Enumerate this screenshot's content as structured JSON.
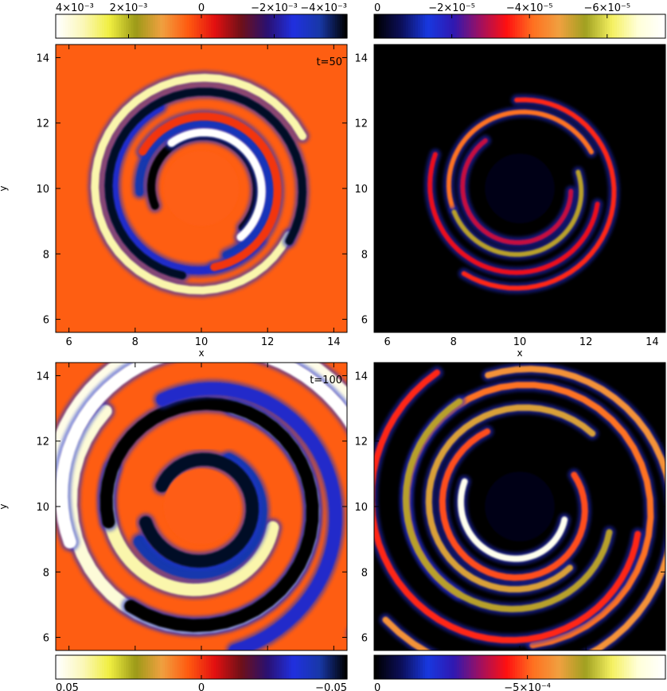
{
  "colormaps": {
    "diverging": [
      "#ffffff",
      "#fbf7b8",
      "#f0ef40",
      "#9c9a18",
      "#f0a040",
      "#ff5a10",
      "#e41010",
      "#701018",
      "#2a1070",
      "#2030e0",
      "#1838a8",
      "#000000"
    ],
    "sequential": [
      "#000000",
      "#0c0f5a",
      "#1838e0",
      "#3018b0",
      "#a01060",
      "#ff1010",
      "#ff7020",
      "#f0a040",
      "#a0a020",
      "#f4f060",
      "#ffffd8",
      "#ffffff"
    ]
  },
  "chart_data": [
    {
      "type": "heatmap",
      "panel": "top-left",
      "label": "t=50",
      "colormap": "diverging",
      "xlabel": "x",
      "ylabel": "y",
      "xlim": [
        5.6,
        14.4
      ],
      "ylim": [
        5.6,
        14.4
      ],
      "xticks": [
        "6",
        "8",
        "10",
        "12",
        "14"
      ],
      "yticks": [
        "6",
        "8",
        "10",
        "12",
        "14"
      ],
      "colorbar": {
        "position": "top",
        "range": [
          0.004,
          -0.004
        ],
        "ticks": [
          "4×10⁻³",
          "2×10⁻³",
          "0",
          "−2×10⁻³",
          "−4×10⁻³"
        ],
        "tick_values": [
          0.004,
          0.002,
          0,
          -0.002,
          -0.004
        ]
      },
      "background_value": 0.0004
    },
    {
      "type": "heatmap",
      "panel": "top-right",
      "label": "t=50",
      "colormap": "sequential",
      "xlabel": "x",
      "ylabel": "",
      "xlim": [
        5.6,
        14.4
      ],
      "ylim": [
        5.6,
        14.4
      ],
      "xticks": [
        "6",
        "8",
        "10",
        "12",
        "14"
      ],
      "yticks": [
        "6",
        "8",
        "10",
        "12",
        "14"
      ],
      "colorbar": {
        "position": "top",
        "range": [
          0,
          -7.5e-05
        ],
        "ticks": [
          "0",
          "−2×10⁻⁵",
          "−4×10⁻⁵",
          "−6×10⁻⁵"
        ],
        "tick_values": [
          0,
          -2e-05,
          -4e-05,
          -6e-05
        ]
      },
      "background_value": 0
    },
    {
      "type": "heatmap",
      "panel": "bottom-left",
      "label": "t=100",
      "colormap": "diverging",
      "xlabel": "",
      "ylabel": "y",
      "xlim": [
        5.6,
        14.4
      ],
      "ylim": [
        5.6,
        14.4
      ],
      "xticks": [
        "6",
        "8",
        "10",
        "12",
        "14"
      ],
      "yticks": [
        "6",
        "8",
        "10",
        "12",
        "14"
      ],
      "colorbar": {
        "position": "bottom",
        "range": [
          0.05,
          -0.05
        ],
        "ticks": [
          "0.05",
          "0",
          "−0.05"
        ],
        "tick_values": [
          0.05,
          0,
          -0.05
        ]
      },
      "background_value": 0.005
    },
    {
      "type": "heatmap",
      "panel": "bottom-right",
      "label": "t=100",
      "colormap": "sequential",
      "xlabel": "",
      "ylabel": "",
      "xlim": [
        5.6,
        14.4
      ],
      "ylim": [
        5.6,
        14.4
      ],
      "xticks": [
        "6",
        "8",
        "10",
        "12",
        "14"
      ],
      "yticks": [
        "6",
        "8",
        "10",
        "12",
        "14"
      ],
      "colorbar": {
        "position": "bottom",
        "range": [
          0,
          -0.00095
        ],
        "ticks": [
          "0",
          "−5×10⁻⁴"
        ],
        "tick_values": [
          0,
          -0.0005
        ]
      },
      "background_value": 0
    }
  ]
}
